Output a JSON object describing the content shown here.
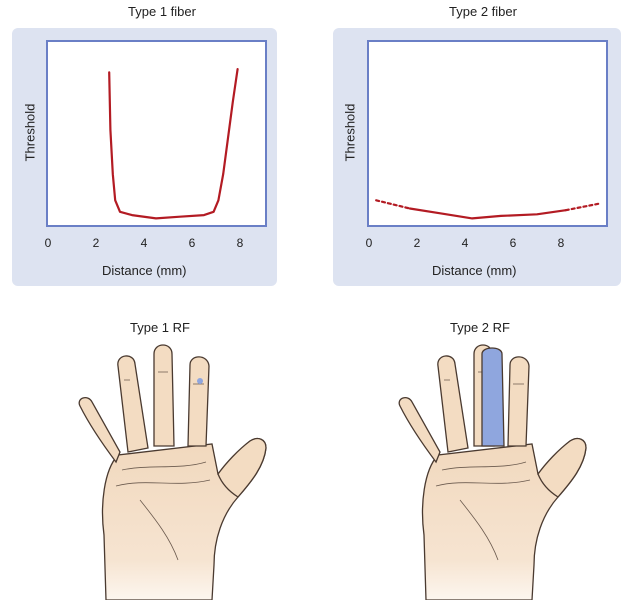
{
  "chart_data": [
    {
      "type": "line",
      "title": "Type 1 fiber",
      "xlabel": "Distance (mm)",
      "ylabel": "Threshold",
      "xticks": [
        "0",
        "2",
        "4",
        "6",
        "8"
      ],
      "xlim": [
        0,
        9.2
      ],
      "ylim": [
        0,
        1
      ],
      "series": [
        {
          "style": "solid",
          "color": "#b31b23",
          "x": [
            2.55,
            2.6,
            2.7,
            2.8,
            3.0,
            3.5,
            4.5,
            5.5,
            6.5,
            6.9,
            7.1,
            7.3,
            7.5,
            7.7,
            7.9
          ],
          "y": [
            0.9,
            0.55,
            0.28,
            0.12,
            0.05,
            0.03,
            0.01,
            0.02,
            0.03,
            0.05,
            0.12,
            0.28,
            0.5,
            0.72,
            0.92
          ]
        }
      ]
    },
    {
      "type": "line",
      "title": "Type 2 fiber",
      "xlabel": "Distance (mm)",
      "ylabel": "Threshold",
      "xticks": [
        "0",
        "2",
        "4",
        "6",
        "8"
      ],
      "xlim": [
        0,
        9.6
      ],
      "ylim": [
        0,
        1
      ],
      "series": [
        {
          "style": "dotted",
          "color": "#b31b23",
          "x": [
            0.3,
            1.7
          ],
          "y": [
            0.12,
            0.07
          ]
        },
        {
          "style": "solid",
          "color": "#b31b23",
          "x": [
            1.7,
            3.0,
            4.3,
            5.5,
            7.0,
            8.2
          ],
          "y": [
            0.07,
            0.04,
            0.01,
            0.025,
            0.035,
            0.06
          ]
        },
        {
          "style": "dotted",
          "color": "#b31b23",
          "x": [
            8.2,
            9.6
          ],
          "y": [
            0.06,
            0.1
          ]
        }
      ]
    }
  ],
  "hands": {
    "left_title": "Type 1 RF",
    "right_title": "Type 2 RF",
    "skin_color": "#f3dcc2",
    "outline_color": "#4a3a30",
    "rf_color": "#8fa6de"
  }
}
